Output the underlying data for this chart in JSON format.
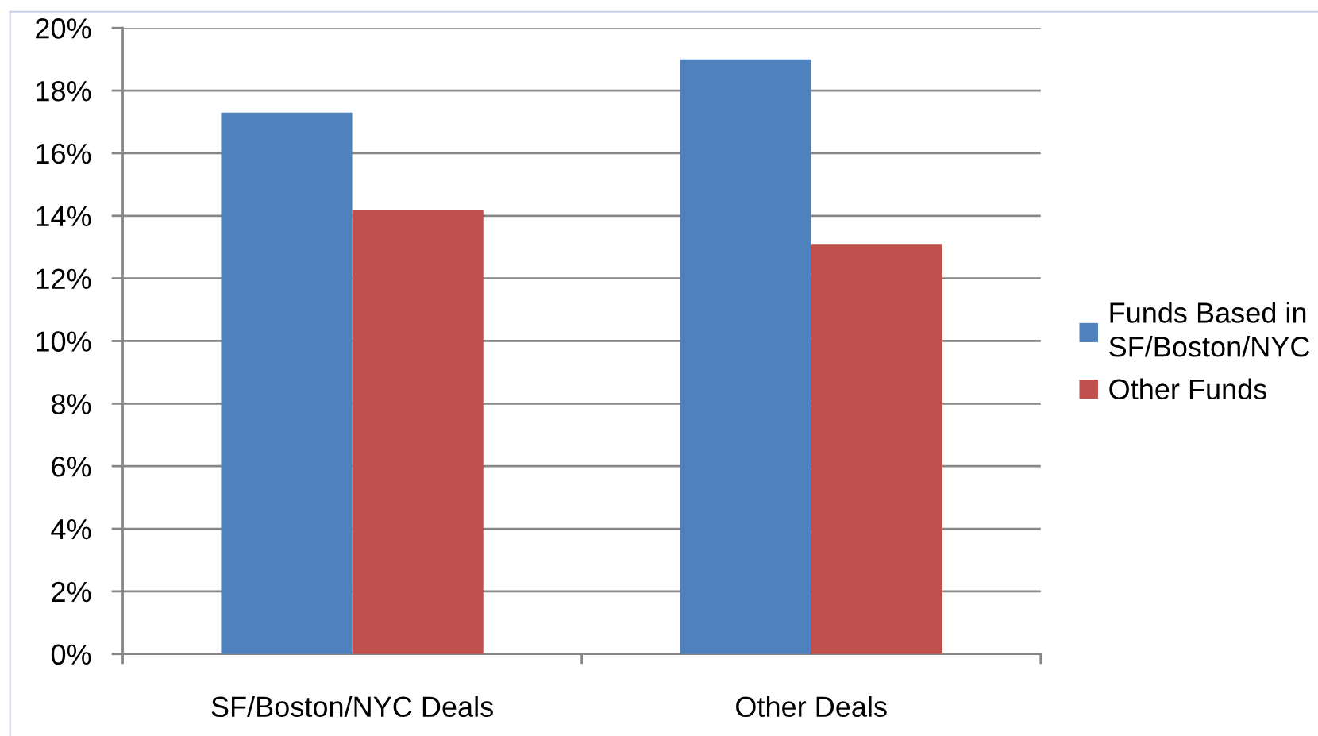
{
  "chart_data": {
    "type": "bar",
    "categories": [
      "SF/Boston/NYC Deals",
      "Other Deals"
    ],
    "series": [
      {
        "name": "Funds Based in SF/Boston/NYC",
        "color": "#4f81bd",
        "values": [
          17.3,
          19.0
        ]
      },
      {
        "name": "Other Funds",
        "color": "#c0504d",
        "values": [
          14.2,
          13.1
        ]
      }
    ],
    "ylim": [
      0,
      20
    ],
    "yticks": [
      {
        "value": 0,
        "label": "0%"
      },
      {
        "value": 2,
        "label": "2%"
      },
      {
        "value": 4,
        "label": "4%"
      },
      {
        "value": 6,
        "label": "6%"
      },
      {
        "value": 8,
        "label": "8%"
      },
      {
        "value": 10,
        "label": "10%"
      },
      {
        "value": 12,
        "label": "12%"
      },
      {
        "value": 14,
        "label": "14%"
      },
      {
        "value": 16,
        "label": "16%"
      },
      {
        "value": 18,
        "label": "18%"
      },
      {
        "value": 20,
        "label": "20%"
      }
    ],
    "grid": "y",
    "legend": "right"
  }
}
